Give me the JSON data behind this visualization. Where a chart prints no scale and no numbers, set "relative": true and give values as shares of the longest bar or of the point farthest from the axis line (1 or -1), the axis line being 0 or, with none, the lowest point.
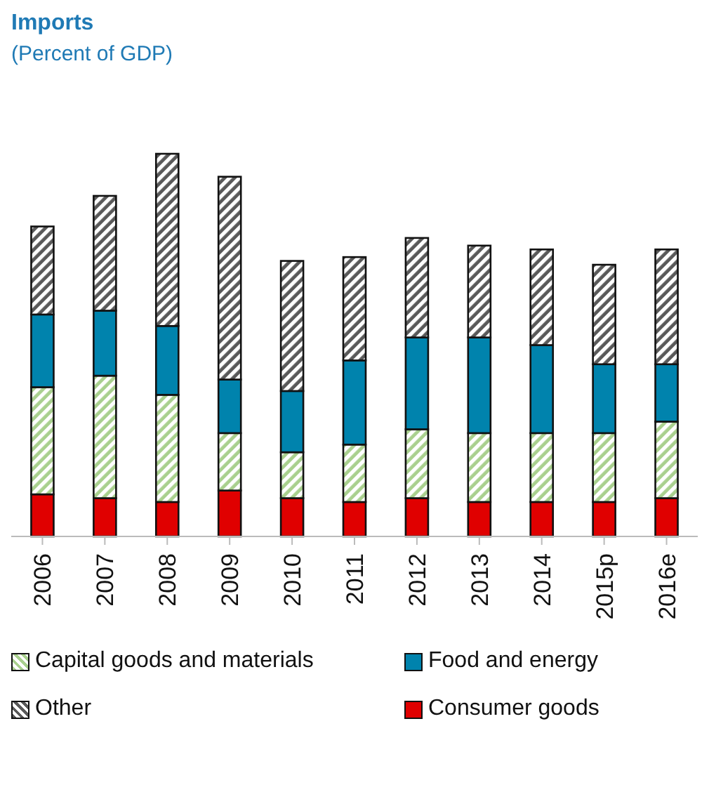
{
  "chart_data": {
    "type": "bar",
    "title": "Imports",
    "subtitle": "(Percent of GDP)",
    "stacked": true,
    "relative": true,
    "legend": "bottom",
    "categories": [
      "2006",
      "2007",
      "2008",
      "2009",
      "2010",
      "2011",
      "2012",
      "2013",
      "2014",
      "2015p",
      "2016e"
    ],
    "series": [
      {
        "name": "Consumer goods",
        "color": "#e00000",
        "values": [
          0.11,
          0.1,
          0.09,
          0.12,
          0.1,
          0.09,
          0.1,
          0.09,
          0.09,
          0.09,
          0.1
        ]
      },
      {
        "name": "Capital goods and materials",
        "color": "#a9d08e",
        "values": [
          0.28,
          0.32,
          0.28,
          0.15,
          0.12,
          0.15,
          0.18,
          0.18,
          0.18,
          0.18,
          0.2
        ]
      },
      {
        "name": "Food and energy",
        "color": "#0083ad",
        "values": [
          0.19,
          0.17,
          0.18,
          0.14,
          0.16,
          0.22,
          0.24,
          0.25,
          0.23,
          0.18,
          0.15
        ]
      },
      {
        "name": "Other",
        "color": "#595959",
        "values": [
          0.23,
          0.3,
          0.45,
          0.53,
          0.34,
          0.27,
          0.26,
          0.24,
          0.25,
          0.26,
          0.3
        ]
      }
    ]
  }
}
